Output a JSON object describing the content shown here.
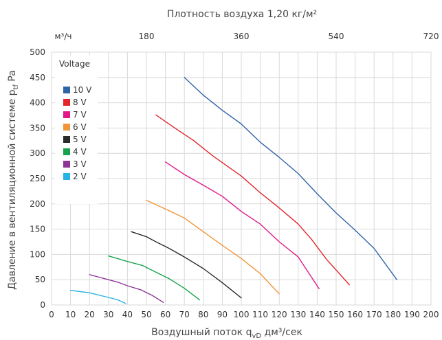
{
  "chart_data": {
    "type": "line",
    "top_title": "Плотность воздуха 1,20 кг/м²",
    "top_axis_unit": "м³/ч",
    "top_ticks": [
      180,
      360,
      540,
      720
    ],
    "xlabel_main": "Воздушный поток q",
    "xlabel_sub": "vD",
    "xlabel_tail": " дм³/сек",
    "ylabel_main": "Давление в вентиляционной системе p",
    "ylabel_sub": "tf",
    "ylabel_tail": " Pa",
    "xlim": [
      0,
      200
    ],
    "ylim": [
      0,
      500
    ],
    "xticks": [
      0,
      10,
      20,
      30,
      40,
      50,
      60,
      70,
      80,
      90,
      100,
      110,
      120,
      130,
      140,
      150,
      160,
      170,
      180,
      190,
      200
    ],
    "yticks": [
      0,
      50,
      100,
      150,
      200,
      250,
      300,
      350,
      400,
      450,
      500
    ],
    "grid": true,
    "legend_title": "Voltage",
    "legend_position": "top-left",
    "series": [
      {
        "name": "10 V",
        "color": "#2f64a6",
        "points": [
          [
            70,
            450
          ],
          [
            80,
            415
          ],
          [
            90,
            385
          ],
          [
            100,
            358
          ],
          [
            110,
            322
          ],
          [
            120,
            292
          ],
          [
            130,
            260
          ],
          [
            140,
            220
          ],
          [
            150,
            182
          ],
          [
            160,
            148
          ],
          [
            170,
            112
          ],
          [
            182,
            50
          ]
        ]
      },
      {
        "name": "8 V",
        "color": "#e2262b",
        "points": [
          [
            55,
            376
          ],
          [
            65,
            350
          ],
          [
            75,
            325
          ],
          [
            85,
            295
          ],
          [
            100,
            255
          ],
          [
            110,
            222
          ],
          [
            120,
            192
          ],
          [
            130,
            160
          ],
          [
            137,
            130
          ],
          [
            145,
            90
          ],
          [
            157,
            40
          ]
        ]
      },
      {
        "name": "7 V",
        "color": "#e0188a",
        "points": [
          [
            60,
            283
          ],
          [
            70,
            258
          ],
          [
            80,
            237
          ],
          [
            90,
            215
          ],
          [
            100,
            185
          ],
          [
            110,
            160
          ],
          [
            120,
            125
          ],
          [
            130,
            95
          ],
          [
            141,
            32
          ]
        ]
      },
      {
        "name": "6 V",
        "color": "#f09538",
        "points": [
          [
            50,
            207
          ],
          [
            60,
            190
          ],
          [
            70,
            172
          ],
          [
            80,
            145
          ],
          [
            90,
            118
          ],
          [
            100,
            92
          ],
          [
            110,
            62
          ],
          [
            120,
            22
          ]
        ]
      },
      {
        "name": "5 V",
        "color": "#2b2b2b",
        "points": [
          [
            42,
            145
          ],
          [
            50,
            135
          ],
          [
            55,
            125
          ],
          [
            62,
            112
          ],
          [
            70,
            95
          ],
          [
            80,
            72
          ],
          [
            90,
            44
          ],
          [
            100,
            14
          ]
        ]
      },
      {
        "name": "4 V",
        "color": "#16a34a",
        "points": [
          [
            30,
            97
          ],
          [
            40,
            86
          ],
          [
            48,
            78
          ],
          [
            55,
            65
          ],
          [
            62,
            52
          ],
          [
            70,
            33
          ],
          [
            78,
            10
          ]
        ]
      },
      {
        "name": "3 V",
        "color": "#8e3497",
        "points": [
          [
            20,
            60
          ],
          [
            25,
            55
          ],
          [
            30,
            50
          ],
          [
            35,
            45
          ],
          [
            40,
            38
          ],
          [
            47,
            30
          ],
          [
            53,
            19
          ],
          [
            59,
            5
          ]
        ]
      },
      {
        "name": "2 V",
        "color": "#27b3e6",
        "points": [
          [
            10,
            29
          ],
          [
            20,
            24
          ],
          [
            30,
            15
          ],
          [
            35,
            10
          ],
          [
            39,
            3
          ]
        ]
      }
    ]
  }
}
